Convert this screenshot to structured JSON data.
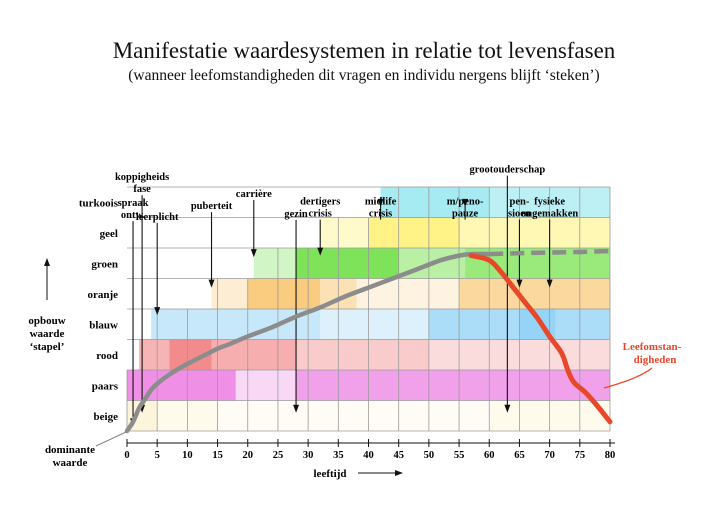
{
  "title": "Manifestatie waardesystemen in relatie tot levensfasen",
  "subtitle": "(wanneer leefomstandigheden dit vragen en individu nergens blijft ‘steken’)",
  "yaxis": {
    "label_line1": "opbouw",
    "label_line2": "waarde",
    "label_line3": "‘stapel’"
  },
  "xaxis": {
    "label": "leeftijd",
    "ticks": [
      "0",
      "5",
      "10",
      "15",
      "20",
      "25",
      "30",
      "35",
      "40",
      "45",
      "50",
      "55",
      "60",
      "65",
      "70",
      "75",
      "80"
    ]
  },
  "dominant_label": {
    "line1": "dominante",
    "line2": "waarde"
  },
  "red_curve_label": {
    "line1": "Leefomstan-",
    "line2": "digheden"
  },
  "colors": {
    "gray_curve": "#8c8c8c",
    "red_curve": "#e8472a",
    "turkoois": "#8fe6ee",
    "geel": "#fff06a",
    "groen": "#7fe35a",
    "oranje": "#f9c36a",
    "blauw": "#8fd2f5",
    "rood": "#f28c8c",
    "paars": "#ef8fe6",
    "beige": "#fbf0c8"
  },
  "chart_data": {
    "type": "area",
    "x_range": [
      0,
      80
    ],
    "levels": [
      "beige",
      "paars",
      "rood",
      "blauw",
      "oranje",
      "groen",
      "geel",
      "turkoois"
    ],
    "bands": [
      {
        "name": "beige",
        "segments": [
          [
            0,
            5,
            0.65
          ],
          [
            5,
            15,
            0.35
          ],
          [
            15,
            60,
            0.18
          ],
          [
            60,
            80,
            0.35
          ]
        ]
      },
      {
        "name": "paars",
        "segments": [
          [
            0,
            18,
            1.0
          ],
          [
            18,
            28,
            0.35
          ],
          [
            28,
            80,
            0.85
          ]
        ]
      },
      {
        "name": "rood",
        "segments": [
          [
            2,
            7,
            0.65
          ],
          [
            7,
            14,
            1.0
          ],
          [
            14,
            28,
            0.7
          ],
          [
            28,
            50,
            0.45
          ],
          [
            50,
            80,
            0.3
          ]
        ]
      },
      {
        "name": "blauw",
        "segments": [
          [
            4,
            32,
            0.5
          ],
          [
            32,
            50,
            0.3
          ],
          [
            50,
            65,
            0.75
          ],
          [
            65,
            71,
            0.95
          ],
          [
            71,
            80,
            0.75
          ]
        ]
      },
      {
        "name": "oranje",
        "segments": [
          [
            14,
            20,
            0.3
          ],
          [
            20,
            32,
            0.85
          ],
          [
            32,
            38,
            0.5
          ],
          [
            38,
            55,
            0.2
          ],
          [
            55,
            80,
            0.65
          ]
        ]
      },
      {
        "name": "groen",
        "segments": [
          [
            21,
            28,
            0.35
          ],
          [
            28,
            45,
            1.0
          ],
          [
            45,
            56,
            0.55
          ],
          [
            56,
            80,
            0.8
          ]
        ]
      },
      {
        "name": "geel",
        "segments": [
          [
            32,
            40,
            0.35
          ],
          [
            40,
            55,
            0.8
          ],
          [
            55,
            80,
            0.5
          ]
        ]
      },
      {
        "name": "turkoois",
        "segments": [
          [
            42,
            60,
            0.8
          ],
          [
            60,
            80,
            0.6
          ]
        ]
      }
    ],
    "dominant_curve": {
      "x": [
        0,
        1,
        2,
        3,
        4,
        5,
        7,
        10,
        13,
        15,
        17,
        20,
        24,
        28,
        32,
        36,
        40,
        44,
        48,
        52,
        55,
        57,
        60
      ],
      "level": [
        0.0,
        0.3,
        0.75,
        1.05,
        1.35,
        1.55,
        1.85,
        2.2,
        2.5,
        2.7,
        2.85,
        3.1,
        3.4,
        3.75,
        4.05,
        4.4,
        4.7,
        5.0,
        5.3,
        5.6,
        5.75,
        5.8,
        5.8
      ]
    },
    "dominant_curve_dashed": {
      "x": [
        60,
        65,
        70,
        75,
        80
      ],
      "level": [
        5.8,
        5.83,
        5.85,
        5.87,
        5.9
      ]
    },
    "red_curve": {
      "x": [
        57,
        60,
        62,
        64,
        66,
        68,
        70,
        72,
        73,
        74,
        76,
        78,
        80
      ],
      "level": [
        5.75,
        5.6,
        5.2,
        4.7,
        4.2,
        3.7,
        3.1,
        2.55,
        2.0,
        1.6,
        1.25,
        0.8,
        0.3
      ]
    },
    "events": [
      {
        "label_lines": [
          "spraak",
          "ontw."
        ],
        "age": 1,
        "label_level": 7.7
      },
      {
        "label_lines": [
          "koppigheids",
          "fase"
        ],
        "age": 2.5,
        "label_level": 8.55
      },
      {
        "label_lines": [
          "leerplicht"
        ],
        "age": 5,
        "label_level": 7.25
      },
      {
        "label_lines": [
          "puberteit"
        ],
        "age": 14,
        "label_level": 7.6
      },
      {
        "label_lines": [
          "carrière"
        ],
        "age": 21,
        "label_level": 8.0
      },
      {
        "label_lines": [
          "gezin"
        ],
        "age": 28,
        "label_level": 7.35
      },
      {
        "label_lines": [
          "dertigers",
          "crisis"
        ],
        "age": 32,
        "label_level": 7.75
      },
      {
        "label_lines": [
          "midlife",
          "crisis"
        ],
        "age": 42,
        "label_level": 7.75
      },
      {
        "label_lines": [
          "m/peno-",
          "pauze"
        ],
        "age": 56,
        "label_level": 7.75
      },
      {
        "label_lines": [
          "grootouderschap"
        ],
        "age": 63,
        "label_level": 8.8
      },
      {
        "label_lines": [
          "pen-",
          "sioen"
        ],
        "age": 65,
        "label_level": 7.75
      },
      {
        "label_lines": [
          "fysieke",
          "ongemakken"
        ],
        "age": 70,
        "label_level": 7.75
      }
    ]
  }
}
